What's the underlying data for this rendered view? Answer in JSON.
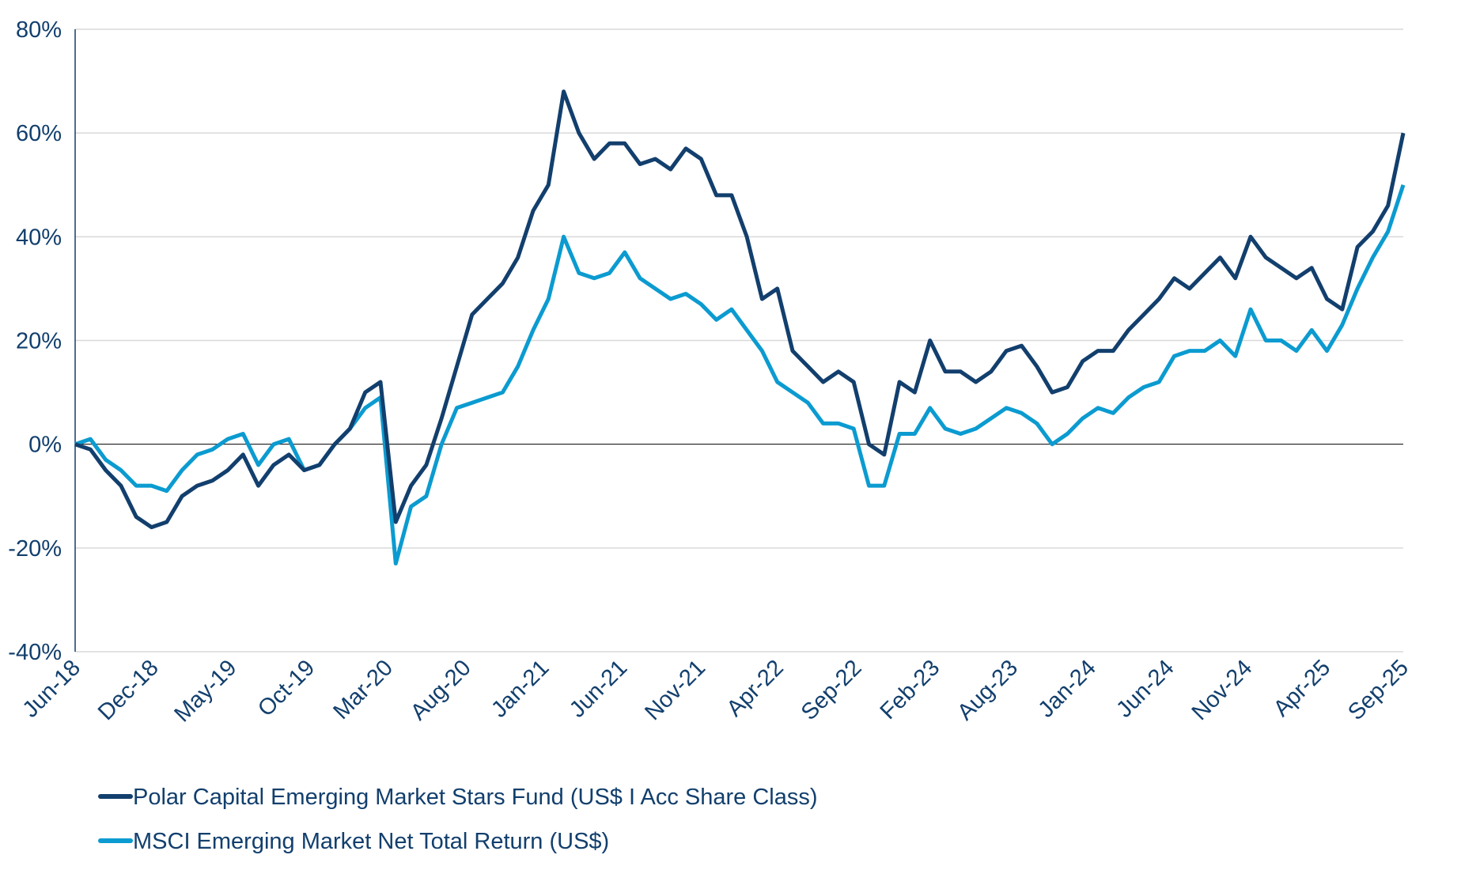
{
  "chart_data": {
    "type": "line",
    "title": "",
    "xlabel": "",
    "ylabel": "",
    "ylim": [
      -40,
      80
    ],
    "yticks": [
      -40,
      -20,
      0,
      20,
      40,
      60,
      80
    ],
    "ytick_labels": [
      "-40%",
      "-20%",
      "0%",
      "20%",
      "40%",
      "60%",
      "80%"
    ],
    "grid": true,
    "legend_position": "bottom-left",
    "xtick_labels": [
      "Jun-18",
      "Dec-18",
      "May-19",
      "Oct-19",
      "Mar-20",
      "Aug-20",
      "Jan-21",
      "Jun-21",
      "Nov-21",
      "Apr-22",
      "Sep-22",
      "Feb-23",
      "Aug-23",
      "Jan-24",
      "Jun-24",
      "Nov-24",
      "Apr-25",
      "Sep-25"
    ],
    "x_start": "Jun-18",
    "x_end": "Sep-25",
    "x_frequency": "monthly",
    "series": [
      {
        "name": "Polar Capital Emerging Market Stars Fund (US$ I Acc Share Class)",
        "color": "#123f6d",
        "values": [
          0,
          -1,
          -5,
          -8,
          -14,
          -16,
          -15,
          -10,
          -8,
          -7,
          -5,
          -2,
          -8,
          -4,
          -2,
          -5,
          -4,
          0,
          3,
          10,
          12,
          -15,
          -8,
          -4,
          5,
          15,
          25,
          28,
          31,
          36,
          45,
          50,
          68,
          60,
          55,
          58,
          58,
          54,
          55,
          53,
          57,
          55,
          48,
          48,
          40,
          28,
          30,
          18,
          15,
          12,
          14,
          12,
          0,
          -2,
          12,
          10,
          20,
          14,
          14,
          12,
          14,
          18,
          19,
          15,
          10,
          11,
          16,
          18,
          18,
          22,
          25,
          28,
          32,
          30,
          33,
          36,
          32,
          40,
          36,
          34,
          32,
          34,
          28,
          26,
          38,
          41,
          46,
          60
        ]
      },
      {
        "name": "MSCI Emerging Market Net Total Return (US$)",
        "color": "#0b9bd0",
        "values": [
          0,
          1,
          -3,
          -5,
          -8,
          -8,
          -9,
          -5,
          -2,
          -1,
          1,
          2,
          -4,
          0,
          1,
          -5,
          -4,
          0,
          3,
          7,
          9,
          -23,
          -12,
          -10,
          0,
          7,
          8,
          9,
          10,
          15,
          22,
          28,
          40,
          33,
          32,
          33,
          37,
          32,
          30,
          28,
          29,
          27,
          24,
          26,
          22,
          18,
          12,
          10,
          8,
          4,
          4,
          3,
          -8,
          -8,
          2,
          2,
          7,
          3,
          2,
          3,
          5,
          7,
          6,
          4,
          0,
          2,
          5,
          7,
          6,
          9,
          11,
          12,
          17,
          18,
          18,
          20,
          17,
          26,
          20,
          20,
          18,
          22,
          18,
          23,
          30,
          36,
          41,
          50
        ]
      }
    ]
  }
}
